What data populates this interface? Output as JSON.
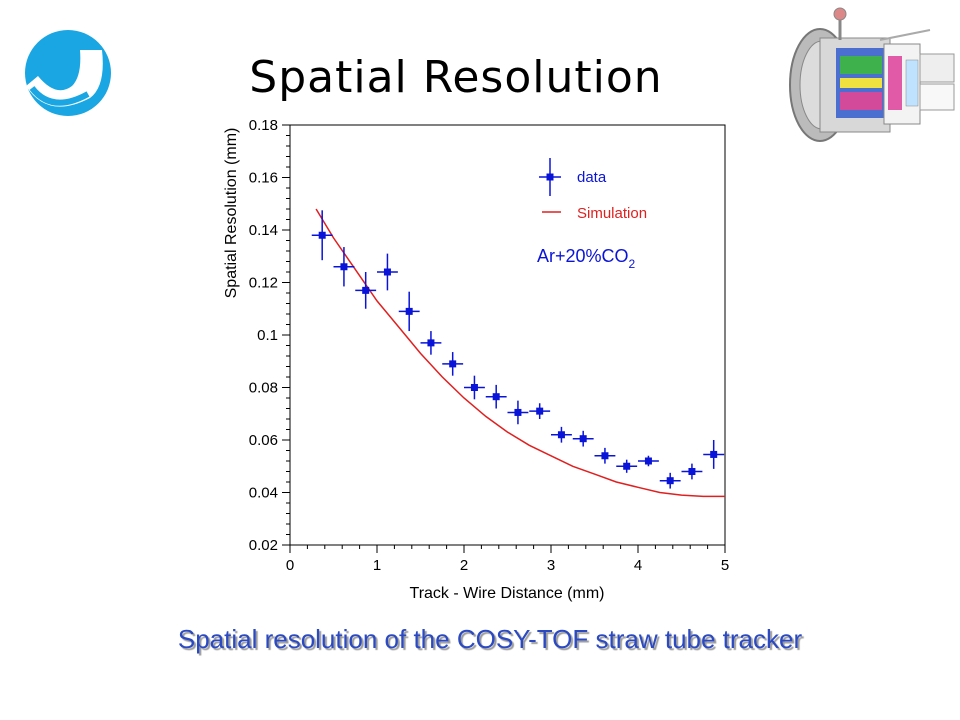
{
  "slide": {
    "title": "Spatial Resolution",
    "caption": "Spatial resolution of the COSY-TOF straw tube tracker",
    "logo_icon": "blue-swoosh-logo-icon",
    "detector_icon": "cosy-tof-detector-cutaway-icon"
  },
  "chart_data": {
    "type": "scatter",
    "title": "",
    "xlabel": "Track - Wire Distance (mm)",
    "ylabel": "Spatial Resolution (mm)",
    "xlim": [
      0,
      5
    ],
    "ylim": [
      0.02,
      0.18
    ],
    "x_ticks": [
      "0",
      "1",
      "2",
      "3",
      "4",
      "5"
    ],
    "y_ticks": [
      "0.02",
      "0.04",
      "0.06",
      "0.08",
      "0.1",
      "0.12",
      "0.14",
      "0.16",
      "0.18"
    ],
    "grid": false,
    "legend_position": "top-right",
    "annotation": {
      "text": "Ar+20%CO",
      "subscript": "2"
    },
    "colors": {
      "data": "#0a14d8",
      "simulation": "#e02020"
    },
    "series": [
      {
        "name": "data",
        "style": "points-with-error-bars",
        "points": [
          {
            "x": 0.37,
            "y": 0.138,
            "xerr": 0.12,
            "yerr": 0.0095
          },
          {
            "x": 0.62,
            "y": 0.126,
            "xerr": 0.12,
            "yerr": 0.0075
          },
          {
            "x": 0.87,
            "y": 0.117,
            "xerr": 0.12,
            "yerr": 0.007
          },
          {
            "x": 1.12,
            "y": 0.124,
            "xerr": 0.12,
            "yerr": 0.007
          },
          {
            "x": 1.37,
            "y": 0.109,
            "xerr": 0.12,
            "yerr": 0.0075
          },
          {
            "x": 1.62,
            "y": 0.097,
            "xerr": 0.12,
            "yerr": 0.0045
          },
          {
            "x": 1.87,
            "y": 0.089,
            "xerr": 0.12,
            "yerr": 0.0045
          },
          {
            "x": 2.12,
            "y": 0.08,
            "xerr": 0.12,
            "yerr": 0.0045
          },
          {
            "x": 2.37,
            "y": 0.0765,
            "xerr": 0.12,
            "yerr": 0.0045
          },
          {
            "x": 2.62,
            "y": 0.0705,
            "xerr": 0.12,
            "yerr": 0.0045
          },
          {
            "x": 2.87,
            "y": 0.071,
            "xerr": 0.12,
            "yerr": 0.003
          },
          {
            "x": 3.12,
            "y": 0.062,
            "xerr": 0.12,
            "yerr": 0.003
          },
          {
            "x": 3.37,
            "y": 0.0605,
            "xerr": 0.12,
            "yerr": 0.003
          },
          {
            "x": 3.62,
            "y": 0.054,
            "xerr": 0.12,
            "yerr": 0.003
          },
          {
            "x": 3.87,
            "y": 0.05,
            "xerr": 0.12,
            "yerr": 0.0025
          },
          {
            "x": 4.12,
            "y": 0.052,
            "xerr": 0.12,
            "yerr": 0.002
          },
          {
            "x": 4.37,
            "y": 0.0445,
            "xerr": 0.12,
            "yerr": 0.003
          },
          {
            "x": 4.62,
            "y": 0.048,
            "xerr": 0.12,
            "yerr": 0.003
          },
          {
            "x": 4.87,
            "y": 0.0545,
            "xerr": 0.12,
            "yerr": 0.0055
          }
        ]
      },
      {
        "name": "Simulation",
        "style": "line",
        "points": [
          {
            "x": 0.3,
            "y": 0.148
          },
          {
            "x": 0.5,
            "y": 0.137
          },
          {
            "x": 0.75,
            "y": 0.125
          },
          {
            "x": 1.0,
            "y": 0.113
          },
          {
            "x": 1.25,
            "y": 0.103
          },
          {
            "x": 1.5,
            "y": 0.093
          },
          {
            "x": 1.75,
            "y": 0.084
          },
          {
            "x": 2.0,
            "y": 0.076
          },
          {
            "x": 2.25,
            "y": 0.069
          },
          {
            "x": 2.5,
            "y": 0.063
          },
          {
            "x": 2.75,
            "y": 0.058
          },
          {
            "x": 3.0,
            "y": 0.054
          },
          {
            "x": 3.25,
            "y": 0.05
          },
          {
            "x": 3.5,
            "y": 0.047
          },
          {
            "x": 3.75,
            "y": 0.044
          },
          {
            "x": 4.0,
            "y": 0.042
          },
          {
            "x": 4.25,
            "y": 0.04
          },
          {
            "x": 4.5,
            "y": 0.039
          },
          {
            "x": 4.75,
            "y": 0.0385
          },
          {
            "x": 5.0,
            "y": 0.0385
          }
        ]
      }
    ]
  }
}
